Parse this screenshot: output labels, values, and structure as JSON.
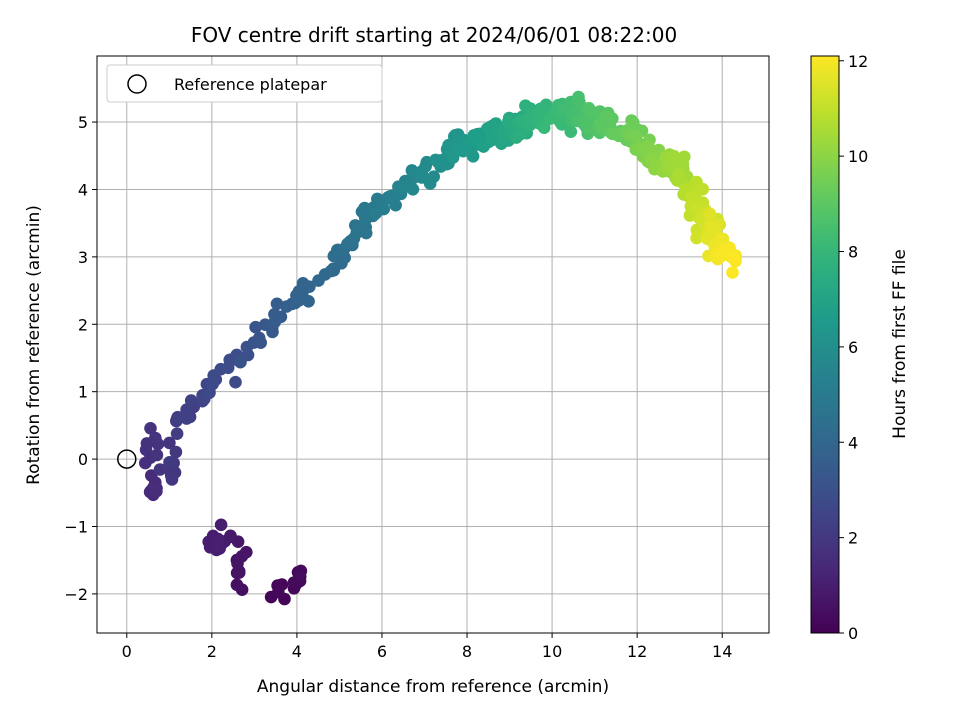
{
  "chart_data": {
    "type": "scatter",
    "title": "FOV centre drift starting at 2024/06/01 08:22:00",
    "xlabel": "Angular distance from reference (arcmin)",
    "ylabel": "Rotation from reference (arcmin)",
    "xlim": [
      -0.7,
      15.1
    ],
    "ylim": [
      -2.58,
      5.98
    ],
    "xticks": [
      0,
      2,
      4,
      6,
      8,
      10,
      12,
      14
    ],
    "yticks": [
      -2,
      -1,
      0,
      1,
      2,
      3,
      4,
      5
    ],
    "grid": true,
    "legend": {
      "placement": "top-left",
      "label": "Reference platepar"
    },
    "reference_point": {
      "x": 0,
      "y": 0
    },
    "colorbar": {
      "label": "Hours from first FF file",
      "range": [
        0,
        12.1
      ],
      "ticks": [
        0,
        2,
        4,
        6,
        8,
        10,
        12
      ],
      "colormap": "viridis"
    },
    "anchors": [
      {
        "x": 3.4,
        "y": -2.15,
        "t": 0.1
      },
      {
        "x": 3.5,
        "y": -1.82,
        "t": 0.2
      },
      {
        "x": 3.9,
        "y": -2.12,
        "t": 0.2
      },
      {
        "x": 4.05,
        "y": -1.72,
        "t": 0.3
      },
      {
        "x": 2.55,
        "y": -1.82,
        "t": 0.5
      },
      {
        "x": 2.7,
        "y": -1.45,
        "t": 0.7
      },
      {
        "x": 2.3,
        "y": -1.1,
        "t": 0.9
      },
      {
        "x": 2.05,
        "y": -1.25,
        "t": 1.0
      },
      {
        "x": 0.6,
        "y": -0.4,
        "t": 1.5
      },
      {
        "x": 0.4,
        "y": 0.12,
        "t": 1.7
      },
      {
        "x": 0.7,
        "y": 0.5,
        "t": 1.8
      },
      {
        "x": 1.0,
        "y": -0.4,
        "t": 1.9
      },
      {
        "x": 1.3,
        "y": 0.58,
        "t": 2.2
      },
      {
        "x": 1.5,
        "y": 0.82,
        "t": 2.4
      },
      {
        "x": 1.9,
        "y": 1.05,
        "t": 2.6
      },
      {
        "x": 2.3,
        "y": 1.3,
        "t": 2.8
      },
      {
        "x": 2.7,
        "y": 1.55,
        "t": 3.0
      },
      {
        "x": 3.3,
        "y": 1.95,
        "t": 3.3
      },
      {
        "x": 3.7,
        "y": 2.2,
        "t": 3.6
      },
      {
        "x": 4.1,
        "y": 2.4,
        "t": 3.8
      },
      {
        "x": 4.5,
        "y": 2.65,
        "t": 4.0
      },
      {
        "x": 5.0,
        "y": 3.0,
        "t": 4.3
      },
      {
        "x": 5.4,
        "y": 3.4,
        "t": 4.6
      },
      {
        "x": 6.0,
        "y": 3.75,
        "t": 5.0
      },
      {
        "x": 6.5,
        "y": 4.05,
        "t": 5.4
      },
      {
        "x": 7.0,
        "y": 4.25,
        "t": 5.8
      },
      {
        "x": 7.6,
        "y": 4.5,
        "t": 6.2
      },
      {
        "x": 8.3,
        "y": 4.75,
        "t": 6.7
      },
      {
        "x": 9.0,
        "y": 4.9,
        "t": 7.2
      },
      {
        "x": 9.8,
        "y": 5.1,
        "t": 7.9
      },
      {
        "x": 10.5,
        "y": 5.15,
        "t": 8.4
      },
      {
        "x": 11.2,
        "y": 5.0,
        "t": 8.9
      },
      {
        "x": 11.8,
        "y": 4.85,
        "t": 9.3
      },
      {
        "x": 12.3,
        "y": 4.5,
        "t": 9.8
      },
      {
        "x": 12.9,
        "y": 4.35,
        "t": 10.3
      },
      {
        "x": 13.3,
        "y": 3.95,
        "t": 10.8
      },
      {
        "x": 13.6,
        "y": 3.55,
        "t": 11.3
      },
      {
        "x": 13.9,
        "y": 3.2,
        "t": 11.7
      },
      {
        "x": 14.2,
        "y": 2.95,
        "t": 12.1
      }
    ],
    "point_count": 500
  }
}
